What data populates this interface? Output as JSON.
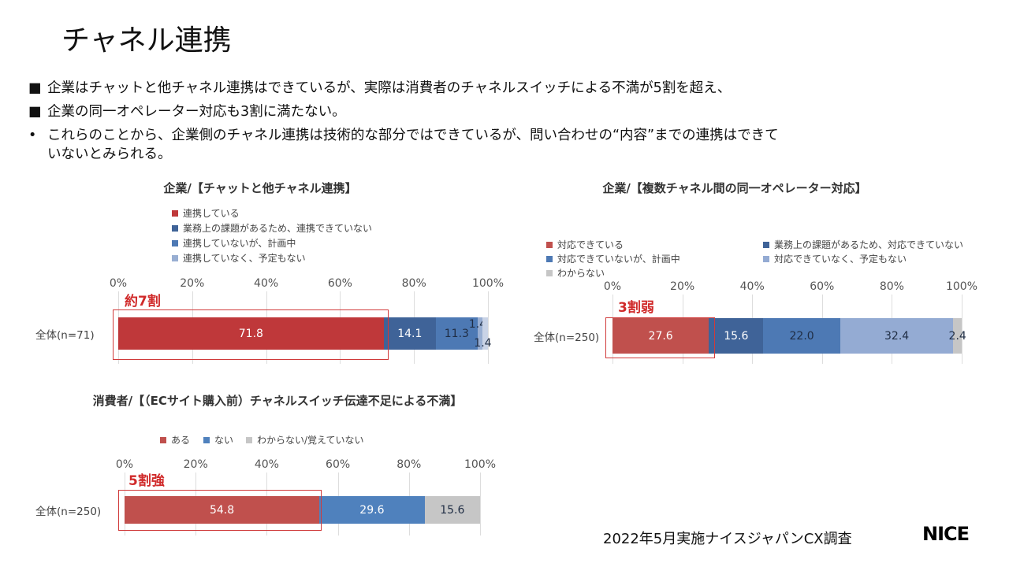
{
  "title": "チャネル連携",
  "bullets": [
    {
      "marker": "■",
      "text": "企業はチャットと他チャネル連携はできているが、実際は消費者のチャネルスイッチによる不満が5割を超え、"
    },
    {
      "marker": "■",
      "text": "企業の同一オペレーター対応も3割に満たない。"
    },
    {
      "marker": "•",
      "text": "これらのことから、企業側のチャネル連携は技術的な部分ではできているが、問い合わせの“内容”までの連携はできて"
    },
    {
      "marker": "",
      "text": "いないとみられる。"
    }
  ],
  "chart_data": [
    {
      "type": "bar",
      "orientation": "horizontal",
      "stacked": true,
      "title": "企業/【チャットと他チャネル連携】",
      "categories": [
        "全体(n=71)"
      ],
      "xlim": [
        0,
        100
      ],
      "ticks": [
        "0%",
        "20%",
        "40%",
        "60%",
        "80%",
        "100%"
      ],
      "grid": true,
      "legend_placement": "top",
      "series": [
        {
          "name": "連携している",
          "values": [
            71.8
          ],
          "label": "71.8",
          "color": "#bf383a"
        },
        {
          "name": "業務上の課題があるため、連携できていない",
          "values": [
            14.1
          ],
          "label": "14.1",
          "color": "#3f6398"
        },
        {
          "name": "連携していないが、計画中",
          "values": [
            11.3
          ],
          "label": "11.3",
          "color": "#4d79b4"
        },
        {
          "name": "連携していなく、予定もない",
          "values": [
            1.4
          ],
          "label": "1.4",
          "color": "#98aed2"
        },
        {
          "name": "",
          "values": [
            1.4
          ],
          "label": "1.4",
          "color": "#c9d3e6"
        }
      ],
      "annotation": "約7割"
    },
    {
      "type": "bar",
      "orientation": "horizontal",
      "stacked": true,
      "title": "企業/【複数チャネル間の同一オペレーター対応】",
      "categories": [
        "全体(n=250)"
      ],
      "xlim": [
        0,
        100
      ],
      "ticks": [
        "0%",
        "20%",
        "40%",
        "60%",
        "80%",
        "100%"
      ],
      "grid": true,
      "legend_placement": "top",
      "series": [
        {
          "name": "対応できている",
          "values": [
            27.6
          ],
          "label": "27.6",
          "color": "#c0504d"
        },
        {
          "name": "業務上の課題があるため、対応できていない",
          "values": [
            15.6
          ],
          "label": "15.6",
          "color": "#3f6398"
        },
        {
          "name": "対応できていないが、計画中",
          "values": [
            22.0
          ],
          "label": "22.0",
          "color": "#4d79b4"
        },
        {
          "name": "対応できていなく、予定もない",
          "values": [
            32.4
          ],
          "label": "32.4",
          "color": "#94abd3"
        },
        {
          "name": "わからない",
          "values": [
            2.4
          ],
          "label": "2.4",
          "color": "#c6c6c6"
        }
      ],
      "annotation": "3割弱"
    },
    {
      "type": "bar",
      "orientation": "horizontal",
      "stacked": true,
      "title": "消費者/【（ECサイト購入前）チャネルスイッチ伝達不足による不満】",
      "categories": [
        "全体(n=250)"
      ],
      "xlim": [
        0,
        100
      ],
      "ticks": [
        "0%",
        "20%",
        "40%",
        "60%",
        "80%",
        "100%"
      ],
      "grid": true,
      "legend_placement": "top",
      "series": [
        {
          "name": "ある",
          "values": [
            54.8
          ],
          "label": "54.8",
          "color": "#c0504d"
        },
        {
          "name": "ない",
          "values": [
            29.6
          ],
          "label": "29.6",
          "color": "#4f81bd"
        },
        {
          "name": "わからない/覚えていない",
          "values": [
            15.6
          ],
          "label": "15.6",
          "color": "#c6c6c6"
        }
      ],
      "annotation": "5割強"
    }
  ],
  "source": "2022年5月実施ナイスジャパンCX調査",
  "logo": "NICE"
}
